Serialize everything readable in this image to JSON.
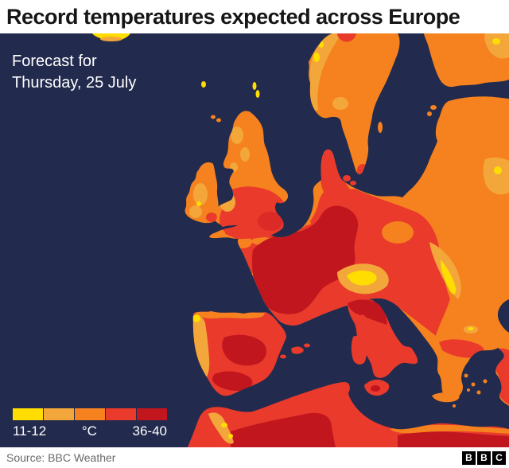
{
  "header": {
    "title": "Record temperatures expected across Europe"
  },
  "map": {
    "annotation": {
      "line1": "Forecast for",
      "line2": "Thursday, 25 July"
    },
    "legend": {
      "min_label": "11-12",
      "unit_label": "°C",
      "max_label": "36-40",
      "colors": [
        "#FFDD00",
        "#F3A73A",
        "#F5821F",
        "#E93A2C",
        "#C2161F"
      ]
    },
    "palette": {
      "sea": "#222A4D",
      "yellow": "#FFDD00",
      "amber": "#F3A73A",
      "orange": "#F5821F",
      "red": "#E93A2C",
      "deep_red": "#DC2A26",
      "dark_red": "#C2161F"
    }
  },
  "footer": {
    "source": "Source: BBC Weather",
    "logo_letters": [
      "B",
      "B",
      "C"
    ]
  }
}
